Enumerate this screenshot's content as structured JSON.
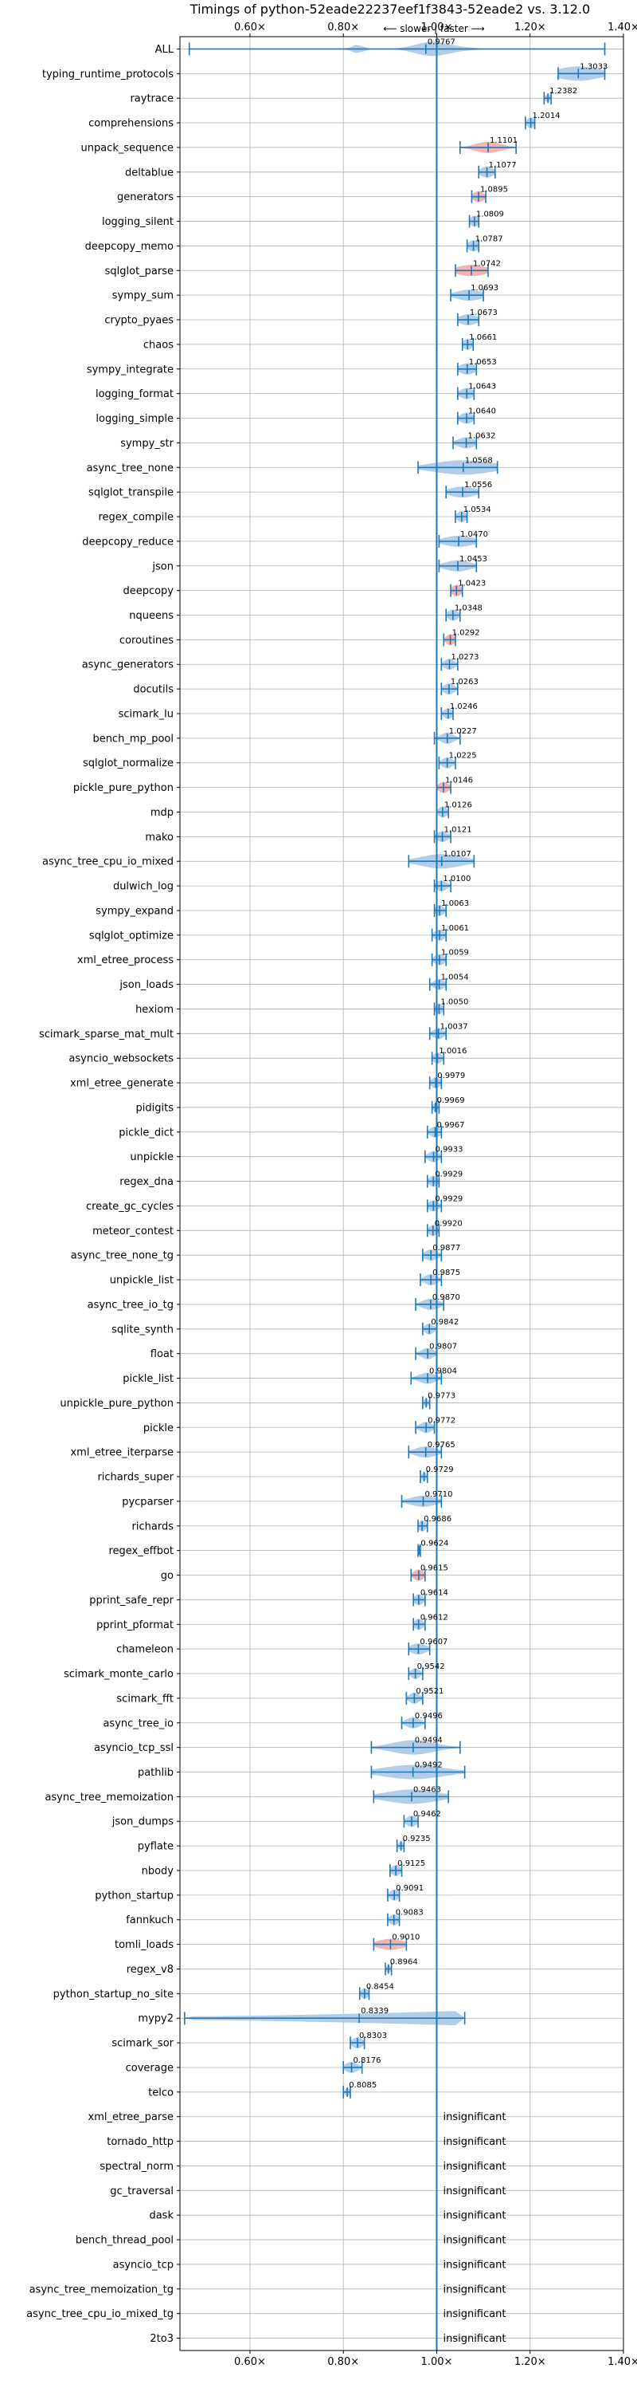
{
  "chart_data": {
    "type": "violin",
    "title": "Timings of python-52eade22237eef1f3843-52eade2 vs. 3.12.0",
    "annotation": "⟵ slower | faster ⟶",
    "xlim": [
      0.45,
      1.4
    ],
    "xticks": [
      0.6,
      0.8,
      1.0,
      1.2,
      1.4
    ],
    "xtick_labels": [
      "0.60×",
      "0.80×",
      "1.00×",
      "1.20×",
      "1.40×"
    ],
    "reference_line": 1.0,
    "insignificant_text": "insignificant",
    "colors": {
      "violin": "#a9c8e6",
      "violin_highlight": "#f4aaaa",
      "line": "#1f77b4",
      "grid": "#b0b0b0"
    },
    "benchmarks": [
      {
        "name": "ALL",
        "value": 0.9767,
        "label": "0.9767",
        "min": 0.47,
        "max": 1.36,
        "spread": 0.12,
        "shape": "all"
      },
      {
        "name": "typing_runtime_protocols",
        "value": 1.3033,
        "label": "1.3033",
        "min": 1.26,
        "max": 1.36,
        "spread": 0.05
      },
      {
        "name": "raytrace",
        "value": 1.2382,
        "label": "1.2382",
        "min": 1.23,
        "max": 1.245,
        "spread": 0.006
      },
      {
        "name": "comprehensions",
        "value": 1.2014,
        "label": "1.2014",
        "min": 1.19,
        "max": 1.21,
        "spread": 0.008
      },
      {
        "name": "unpack_sequence",
        "value": 1.1101,
        "label": "1.1101",
        "min": 1.05,
        "max": 1.17,
        "spread": 0.03,
        "highlight": true
      },
      {
        "name": "deltablue",
        "value": 1.1077,
        "label": "1.1077",
        "min": 1.09,
        "max": 1.125,
        "spread": 0.015
      },
      {
        "name": "generators",
        "value": 1.0895,
        "label": "1.0895",
        "min": 1.075,
        "max": 1.105,
        "spread": 0.012,
        "highlight": true
      },
      {
        "name": "logging_silent",
        "value": 1.0809,
        "label": "1.0809",
        "min": 1.07,
        "max": 1.09,
        "spread": 0.01
      },
      {
        "name": "deepcopy_memo",
        "value": 1.0787,
        "label": "1.0787",
        "min": 1.065,
        "max": 1.09,
        "spread": 0.012
      },
      {
        "name": "sqlglot_parse",
        "value": 1.0742,
        "label": "1.0742",
        "min": 1.04,
        "max": 1.11,
        "spread": 0.035,
        "highlight": true
      },
      {
        "name": "sympy_sum",
        "value": 1.0693,
        "label": "1.0693",
        "min": 1.03,
        "max": 1.1,
        "spread": 0.03
      },
      {
        "name": "crypto_pyaes",
        "value": 1.0673,
        "label": "1.0673",
        "min": 1.045,
        "max": 1.09,
        "spread": 0.02
      },
      {
        "name": "chaos",
        "value": 1.0661,
        "label": "1.0661",
        "min": 1.055,
        "max": 1.078,
        "spread": 0.01
      },
      {
        "name": "sympy_integrate",
        "value": 1.0653,
        "label": "1.0653",
        "min": 1.045,
        "max": 1.085,
        "spread": 0.018
      },
      {
        "name": "logging_format",
        "value": 1.0643,
        "label": "1.0643",
        "min": 1.045,
        "max": 1.08,
        "spread": 0.015
      },
      {
        "name": "logging_simple",
        "value": 1.064,
        "label": "1.0640",
        "min": 1.045,
        "max": 1.08,
        "spread": 0.015
      },
      {
        "name": "sympy_str",
        "value": 1.0632,
        "label": "1.0632",
        "min": 1.035,
        "max": 1.085,
        "spread": 0.02
      },
      {
        "name": "async_tree_none",
        "value": 1.0568,
        "label": "1.0568",
        "min": 0.96,
        "max": 1.13,
        "spread": 0.07
      },
      {
        "name": "sqlglot_transpile",
        "value": 1.0556,
        "label": "1.0556",
        "min": 1.02,
        "max": 1.09,
        "spread": 0.03
      },
      {
        "name": "regex_compile",
        "value": 1.0534,
        "label": "1.0534",
        "min": 1.04,
        "max": 1.065,
        "spread": 0.01
      },
      {
        "name": "deepcopy_reduce",
        "value": 1.047,
        "label": "1.0470",
        "min": 1.005,
        "max": 1.085,
        "spread": 0.035
      },
      {
        "name": "json",
        "value": 1.0453,
        "label": "1.0453",
        "min": 1.005,
        "max": 1.085,
        "spread": 0.03
      },
      {
        "name": "deepcopy",
        "value": 1.0423,
        "label": "1.0423",
        "min": 1.03,
        "max": 1.055,
        "spread": 0.012,
        "highlight": true
      },
      {
        "name": "nqueens",
        "value": 1.0348,
        "label": "1.0348",
        "min": 1.02,
        "max": 1.05,
        "spread": 0.012
      },
      {
        "name": "coroutines",
        "value": 1.0292,
        "label": "1.0292",
        "min": 1.015,
        "max": 1.04,
        "spread": 0.01,
        "highlight": true
      },
      {
        "name": "async_generators",
        "value": 1.0273,
        "label": "1.0273",
        "min": 1.01,
        "max": 1.045,
        "spread": 0.012
      },
      {
        "name": "docutils",
        "value": 1.0263,
        "label": "1.0263",
        "min": 1.01,
        "max": 1.045,
        "spread": 0.012
      },
      {
        "name": "scimark_lu",
        "value": 1.0246,
        "label": "1.0246",
        "min": 1.01,
        "max": 1.035,
        "spread": 0.01
      },
      {
        "name": "bench_mp_pool",
        "value": 1.0227,
        "label": "1.0227",
        "min": 0.995,
        "max": 1.05,
        "spread": 0.015
      },
      {
        "name": "sqlglot_normalize",
        "value": 1.0225,
        "label": "1.0225",
        "min": 1.005,
        "max": 1.04,
        "spread": 0.012
      },
      {
        "name": "pickle_pure_python",
        "value": 1.0146,
        "label": "1.0146",
        "min": 1.0,
        "max": 1.03,
        "spread": 0.012,
        "highlight": true
      },
      {
        "name": "mdp",
        "value": 1.0126,
        "label": "1.0126",
        "min": 1.0,
        "max": 1.025,
        "spread": 0.01
      },
      {
        "name": "mako",
        "value": 1.0121,
        "label": "1.0121",
        "min": 0.995,
        "max": 1.03,
        "spread": 0.012
      },
      {
        "name": "async_tree_cpu_io_mixed",
        "value": 1.0107,
        "label": "1.0107",
        "min": 0.94,
        "max": 1.08,
        "spread": 0.05
      },
      {
        "name": "dulwich_log",
        "value": 1.01,
        "label": "1.0100",
        "min": 0.995,
        "max": 1.03,
        "spread": 0.012
      },
      {
        "name": "sympy_expand",
        "value": 1.0063,
        "label": "1.0063",
        "min": 0.995,
        "max": 1.02,
        "spread": 0.01
      },
      {
        "name": "sqlglot_optimize",
        "value": 1.0061,
        "label": "1.0061",
        "min": 0.99,
        "max": 1.02,
        "spread": 0.012
      },
      {
        "name": "xml_etree_process",
        "value": 1.0059,
        "label": "1.0059",
        "min": 0.99,
        "max": 1.02,
        "spread": 0.012
      },
      {
        "name": "json_loads",
        "value": 1.0054,
        "label": "1.0054",
        "min": 0.985,
        "max": 1.02,
        "spread": 0.012
      },
      {
        "name": "hexiom",
        "value": 1.005,
        "label": "1.0050",
        "min": 0.995,
        "max": 1.015,
        "spread": 0.008
      },
      {
        "name": "scimark_sparse_mat_mult",
        "value": 1.0037,
        "label": "1.0037",
        "min": 0.985,
        "max": 1.02,
        "spread": 0.012
      },
      {
        "name": "asyncio_websockets",
        "value": 1.0016,
        "label": "1.0016",
        "min": 0.99,
        "max": 1.015,
        "spread": 0.01
      },
      {
        "name": "xml_etree_generate",
        "value": 0.9979,
        "label": "0.9979",
        "min": 0.985,
        "max": 1.01,
        "spread": 0.01
      },
      {
        "name": "pidigits",
        "value": 0.9969,
        "label": "0.9969",
        "min": 0.99,
        "max": 1.005,
        "spread": 0.006
      },
      {
        "name": "pickle_dict",
        "value": 0.9967,
        "label": "0.9967",
        "min": 0.98,
        "max": 1.01,
        "spread": 0.012
      },
      {
        "name": "unpickle",
        "value": 0.9933,
        "label": "0.9933",
        "min": 0.975,
        "max": 1.01,
        "spread": 0.012
      },
      {
        "name": "regex_dna",
        "value": 0.9929,
        "label": "0.9929",
        "min": 0.98,
        "max": 1.005,
        "spread": 0.01
      },
      {
        "name": "create_gc_cycles",
        "value": 0.9929,
        "label": "0.9929",
        "min": 0.98,
        "max": 1.01,
        "spread": 0.012
      },
      {
        "name": "meteor_contest",
        "value": 0.992,
        "label": "0.9920",
        "min": 0.98,
        "max": 1.005,
        "spread": 0.01
      },
      {
        "name": "async_tree_none_tg",
        "value": 0.9877,
        "label": "0.9877",
        "min": 0.97,
        "max": 1.01,
        "spread": 0.015
      },
      {
        "name": "unpickle_list",
        "value": 0.9875,
        "label": "0.9875",
        "min": 0.965,
        "max": 1.01,
        "spread": 0.015
      },
      {
        "name": "async_tree_io_tg",
        "value": 0.987,
        "label": "0.9870",
        "min": 0.955,
        "max": 1.015,
        "spread": 0.02
      },
      {
        "name": "sqlite_synth",
        "value": 0.9842,
        "label": "0.9842",
        "min": 0.97,
        "max": 1.0,
        "spread": 0.01
      },
      {
        "name": "float",
        "value": 0.9807,
        "label": "0.9807",
        "min": 0.955,
        "max": 1.0,
        "spread": 0.015
      },
      {
        "name": "pickle_list",
        "value": 0.9804,
        "label": "0.9804",
        "min": 0.945,
        "max": 1.01,
        "spread": 0.02
      },
      {
        "name": "unpickle_pure_python",
        "value": 0.9773,
        "label": "0.9773",
        "min": 0.97,
        "max": 0.985,
        "spread": 0.006
      },
      {
        "name": "pickle",
        "value": 0.9772,
        "label": "0.9772",
        "min": 0.955,
        "max": 0.995,
        "spread": 0.014
      },
      {
        "name": "xml_etree_iterparse",
        "value": 0.9765,
        "label": "0.9765",
        "min": 0.94,
        "max": 1.01,
        "spread": 0.025
      },
      {
        "name": "richards_super",
        "value": 0.9729,
        "label": "0.9729",
        "min": 0.965,
        "max": 0.98,
        "spread": 0.006
      },
      {
        "name": "pycparser",
        "value": 0.971,
        "label": "0.9710",
        "min": 0.925,
        "max": 1.01,
        "spread": 0.03
      },
      {
        "name": "richards",
        "value": 0.9686,
        "label": "0.9686",
        "min": 0.96,
        "max": 0.98,
        "spread": 0.008
      },
      {
        "name": "regex_effbot",
        "value": 0.9624,
        "label": "0.9624",
        "min": 0.96,
        "max": 0.965,
        "spread": 0.003
      },
      {
        "name": "go",
        "value": 0.9615,
        "label": "0.9615",
        "min": 0.945,
        "max": 0.975,
        "spread": 0.012,
        "highlight": true
      },
      {
        "name": "pprint_safe_repr",
        "value": 0.9614,
        "label": "0.9614",
        "min": 0.95,
        "max": 0.975,
        "spread": 0.01
      },
      {
        "name": "pprint_pformat",
        "value": 0.9612,
        "label": "0.9612",
        "min": 0.95,
        "max": 0.975,
        "spread": 0.01
      },
      {
        "name": "chameleon",
        "value": 0.9607,
        "label": "0.9607",
        "min": 0.94,
        "max": 0.985,
        "spread": 0.018
      },
      {
        "name": "scimark_monte_carlo",
        "value": 0.9542,
        "label": "0.9542",
        "min": 0.94,
        "max": 0.97,
        "spread": 0.01
      },
      {
        "name": "scimark_fft",
        "value": 0.9521,
        "label": "0.9521",
        "min": 0.935,
        "max": 0.97,
        "spread": 0.012
      },
      {
        "name": "async_tree_io",
        "value": 0.9496,
        "label": "0.9496",
        "min": 0.925,
        "max": 0.975,
        "spread": 0.016
      },
      {
        "name": "asyncio_tcp_ssl",
        "value": 0.9494,
        "label": "0.9494",
        "min": 0.86,
        "max": 1.05,
        "spread": 0.05
      },
      {
        "name": "pathlib",
        "value": 0.9492,
        "label": "0.9492",
        "min": 0.86,
        "max": 1.06,
        "spread": 0.07
      },
      {
        "name": "async_tree_memoization",
        "value": 0.9463,
        "label": "0.9463",
        "min": 0.865,
        "max": 1.025,
        "spread": 0.06
      },
      {
        "name": "json_dumps",
        "value": 0.9462,
        "label": "0.9462",
        "min": 0.93,
        "max": 0.96,
        "spread": 0.012
      },
      {
        "name": "pyflate",
        "value": 0.9235,
        "label": "0.9235",
        "min": 0.915,
        "max": 0.93,
        "spread": 0.006
      },
      {
        "name": "nbody",
        "value": 0.9125,
        "label": "0.9125",
        "min": 0.9,
        "max": 0.925,
        "spread": 0.01
      },
      {
        "name": "python_startup",
        "value": 0.9091,
        "label": "0.9091",
        "min": 0.895,
        "max": 0.92,
        "spread": 0.01
      },
      {
        "name": "fannkuch",
        "value": 0.9083,
        "label": "0.9083",
        "min": 0.895,
        "max": 0.92,
        "spread": 0.01
      },
      {
        "name": "tomli_loads",
        "value": 0.901,
        "label": "0.9010",
        "min": 0.865,
        "max": 0.935,
        "spread": 0.03,
        "highlight": true
      },
      {
        "name": "regex_v8",
        "value": 0.8964,
        "label": "0.8964",
        "min": 0.89,
        "max": 0.903,
        "spread": 0.005
      },
      {
        "name": "python_startup_no_site",
        "value": 0.8454,
        "label": "0.8454",
        "min": 0.835,
        "max": 0.855,
        "spread": 0.008
      },
      {
        "name": "mypy2",
        "value": 0.8339,
        "label": "0.8339",
        "min": 0.46,
        "max": 1.06,
        "spread": 0.12,
        "shape": "mypy"
      },
      {
        "name": "scimark_sor",
        "value": 0.8303,
        "label": "0.8303",
        "min": 0.815,
        "max": 0.845,
        "spread": 0.012
      },
      {
        "name": "coverage",
        "value": 0.8176,
        "label": "0.8176",
        "min": 0.8,
        "max": 0.84,
        "spread": 0.014
      },
      {
        "name": "telco",
        "value": 0.8085,
        "label": "0.8085",
        "min": 0.8,
        "max": 0.815,
        "spread": 0.006
      },
      {
        "name": "xml_etree_parse",
        "insignificant": true
      },
      {
        "name": "tornado_http",
        "insignificant": true
      },
      {
        "name": "spectral_norm",
        "insignificant": true
      },
      {
        "name": "gc_traversal",
        "insignificant": true
      },
      {
        "name": "dask",
        "insignificant": true
      },
      {
        "name": "bench_thread_pool",
        "insignificant": true
      },
      {
        "name": "asyncio_tcp",
        "insignificant": true
      },
      {
        "name": "async_tree_memoization_tg",
        "insignificant": true
      },
      {
        "name": "async_tree_cpu_io_mixed_tg",
        "insignificant": true
      },
      {
        "name": "2to3",
        "insignificant": true
      }
    ]
  }
}
